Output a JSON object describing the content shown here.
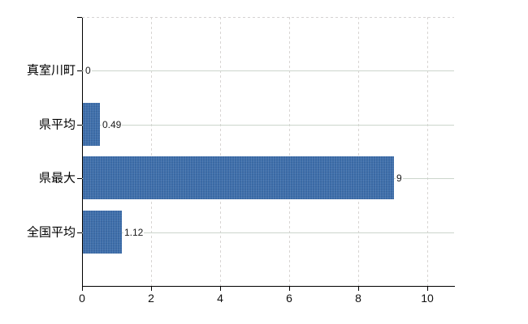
{
  "chart_data": {
    "type": "bar",
    "orientation": "horizontal",
    "title": "",
    "xlabel": "",
    "ylabel": "",
    "categories": [
      "真室川町",
      "県平均",
      "県最大",
      "全国平均"
    ],
    "values": [
      0,
      0.49,
      9,
      1.12
    ],
    "data_labels": [
      "0",
      "0.49",
      "9",
      "1.12"
    ],
    "x_ticks": [
      0,
      2,
      4,
      6,
      8,
      10
    ],
    "x_tick_labels": [
      "0",
      "2",
      "4",
      "6",
      "8",
      "10"
    ],
    "xlim": [
      0,
      10.78
    ],
    "grid": {
      "vertical": "dashed at each x tick",
      "horizontal": "solid line at each category center"
    },
    "legend": "none",
    "colors": {
      "bar": "#3e6eaa",
      "horizontal_grid": "#ccd5cc",
      "vertical_grid": "#d8d5d3",
      "axis": "#000000",
      "text": "#1a1a1a",
      "background": "#ffffff"
    }
  }
}
